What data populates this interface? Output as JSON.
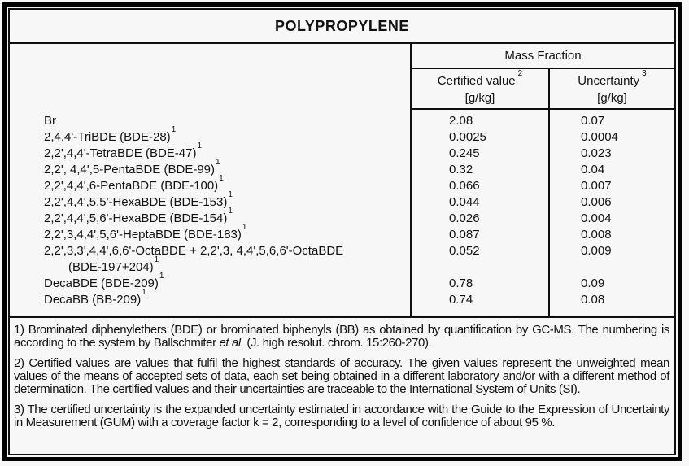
{
  "title": "POLYPROPYLENE",
  "header": {
    "group_label": "Mass Fraction",
    "certified": {
      "label": "Certified value",
      "sup": "2",
      "unit": "[g/kg]"
    },
    "uncertainty": {
      "label": "Uncertainty",
      "sup": "3",
      "unit": "[g/kg]"
    }
  },
  "table": {
    "rows": [
      {
        "name": "Br",
        "sup": "",
        "indent": false,
        "certified": "2.08",
        "uncertainty": "0.07"
      },
      {
        "name": "2,4,4'-TriBDE (BDE-28)",
        "sup": "1",
        "indent": false,
        "certified": "0.0025",
        "uncertainty": "0.0004"
      },
      {
        "name": "2,2',4,4'-TetraBDE (BDE-47)",
        "sup": "1",
        "indent": false,
        "certified": "0.245",
        "uncertainty": "0.023"
      },
      {
        "name": "2,2', 4,4',5-PentaBDE (BDE-99)",
        "sup": "1",
        "indent": false,
        "certified": "0.32",
        "uncertainty": "0.04"
      },
      {
        "name": "2,2',4,4',6-PentaBDE (BDE-100)",
        "sup": "1",
        "indent": false,
        "certified": "0.066",
        "uncertainty": "0.007"
      },
      {
        "name": "2,2',4,4',5,5'-HexaBDE (BDE-153)",
        "sup": "1",
        "indent": false,
        "certified": "0.044",
        "uncertainty": "0.006"
      },
      {
        "name": "2,2',4,4',5,6'-HexaBDE (BDE-154)",
        "sup": "1",
        "indent": false,
        "certified": "0.026",
        "uncertainty": "0.004"
      },
      {
        "name": "2,2',3,4,4',5,6'-HeptaBDE (BDE-183)",
        "sup": "1",
        "indent": false,
        "certified": "0.087",
        "uncertainty": "0.008"
      },
      {
        "name": "2,2',3,3',4,4',6,6'-OctaBDE + 2,2',3, 4,4',5,6,6'-OctaBDE",
        "sup": "",
        "indent": false,
        "certified": "0.052",
        "uncertainty": "0.009"
      },
      {
        "name": "(BDE-197+204)",
        "sup": "1",
        "indent": true,
        "certified": "",
        "uncertainty": ""
      },
      {
        "name": "DecaBDE (BDE-209)",
        "sup": "1",
        "indent": false,
        "certified": "0.78",
        "uncertainty": "0.09"
      },
      {
        "name": "DecaBB (BB-209)",
        "sup": "1",
        "indent": false,
        "certified": "0.74",
        "uncertainty": "0.08"
      }
    ]
  },
  "footnotes": {
    "note1": {
      "pre": "1) Brominated diphenylethers (BDE) or brominated biphenyls (BB) as obtained by quantification by GC-MS. The numbering is according to the system by Ballschmiter ",
      "italic": "et al.",
      "post": " (J. high resolut. chrom. 15:260-270)."
    },
    "note2": "2) Certified values are values that fulfil the highest standards of accuracy. The given values represent the unweighted mean values of the means of accepted sets of data, each set being obtained in a different laboratory and/or with a different method of determination. The certified values and their uncertainties are traceable to the International System of Units (SI).",
    "note3": "3) The certified uncertainty is the expanded uncertainty estimated in accordance with the Guide to the Expression of Uncertainty in Measurement (GUM) with a coverage factor k = 2, corresponding to a level of confidence of about 95 %."
  }
}
